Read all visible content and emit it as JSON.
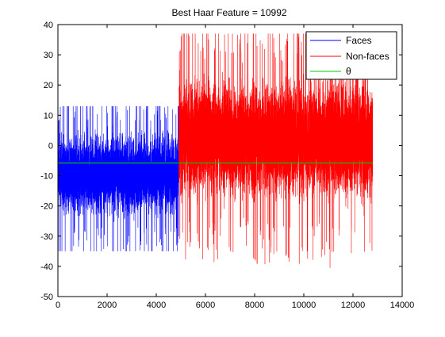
{
  "chart_data": {
    "type": "line",
    "title": "Best Haar Feature = 10992",
    "xlabel": "",
    "ylabel": "",
    "xlim": [
      0,
      14000
    ],
    "ylim": [
      -50,
      40
    ],
    "xticks": [
      0,
      2000,
      4000,
      6000,
      8000,
      10000,
      12000,
      14000
    ],
    "xtick_labels": [
      "0",
      "2000",
      "4000",
      "6000",
      "8000",
      "10000",
      "12000",
      "14000"
    ],
    "yticks": [
      -50,
      -40,
      -30,
      -20,
      -10,
      0,
      10,
      20,
      30,
      40
    ],
    "ytick_labels": [
      "-50",
      "-40",
      "-30",
      "-20",
      "-10",
      "0",
      "10",
      "20",
      "30",
      "40"
    ],
    "grid": false,
    "legend": {
      "placement": "top-right",
      "entries": [
        "Faces",
        "Non-faces",
        "θ"
      ]
    },
    "series": [
      {
        "name": "Faces",
        "color": "#0000ff",
        "x_range": [
          1,
          4916
        ],
        "n_points": 4916,
        "typical_range": [
          -22,
          3
        ],
        "y_min": -35,
        "y_max": 13,
        "center": -9
      },
      {
        "name": "Non-faces",
        "color": "#ff0000",
        "x_range": [
          4917,
          12800
        ],
        "n_points": 7884,
        "typical_range": [
          -16,
          20
        ],
        "y_min": -40.5,
        "y_max": 37,
        "center": 0
      },
      {
        "name": "θ",
        "color": "#00cc00",
        "x": [
          0,
          12800
        ],
        "y": [
          -5.8,
          -5.8
        ]
      }
    ]
  }
}
